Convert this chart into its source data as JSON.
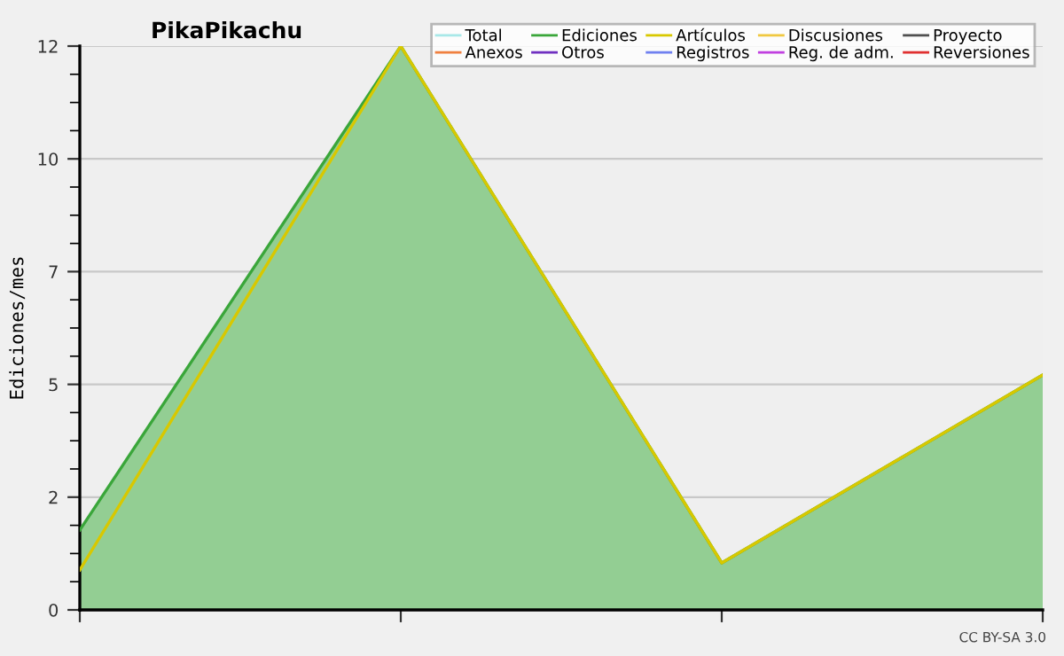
{
  "chart_data": {
    "type": "line",
    "title": "PikaPikachu",
    "ylabel": "Ediciones/mes",
    "categories": [
      null,
      null,
      null,
      null
    ],
    "series": [
      {
        "name": "Total",
        "color": "#a8e8e8",
        "values": [
          null,
          null,
          null,
          null
        ]
      },
      {
        "name": "Ediciones",
        "color": "#3aa63a",
        "type": "area",
        "values": [
          1.7,
          12,
          1.0,
          5.0
        ]
      },
      {
        "name": "Artículos",
        "color": "#d8c800",
        "values": [
          0.85,
          12,
          1.0,
          5.0
        ]
      },
      {
        "name": "Discusiones",
        "color": "#f0c840",
        "values": [
          null,
          null,
          null,
          null
        ]
      },
      {
        "name": "Proyecto",
        "color": "#505050",
        "values": [
          null,
          null,
          null,
          null
        ]
      },
      {
        "name": "Anexos",
        "color": "#f08040",
        "values": [
          null,
          null,
          null,
          null
        ]
      },
      {
        "name": "Otros",
        "color": "#7030c0",
        "values": [
          null,
          null,
          null,
          null
        ]
      },
      {
        "name": "Registros",
        "color": "#7080f0",
        "values": [
          null,
          null,
          null,
          null
        ]
      },
      {
        "name": "Reg. de adm.",
        "color": "#c040e0",
        "values": [
          null,
          null,
          null,
          null
        ]
      },
      {
        "name": "Reversiones",
        "color": "#e03030",
        "values": [
          null,
          null,
          null,
          null
        ]
      }
    ],
    "ylim": [
      0,
      12
    ],
    "yticks": [
      0,
      {
        "value": 2.4,
        "label": "2"
      },
      {
        "value": 4.8,
        "label": "5"
      },
      {
        "value": 7.2,
        "label": "7"
      },
      {
        "value": 9.6,
        "label": "10"
      },
      12
    ],
    "grid": "y",
    "legend": "top right",
    "annotations": [
      "CC BY-SA 3.0"
    ]
  }
}
